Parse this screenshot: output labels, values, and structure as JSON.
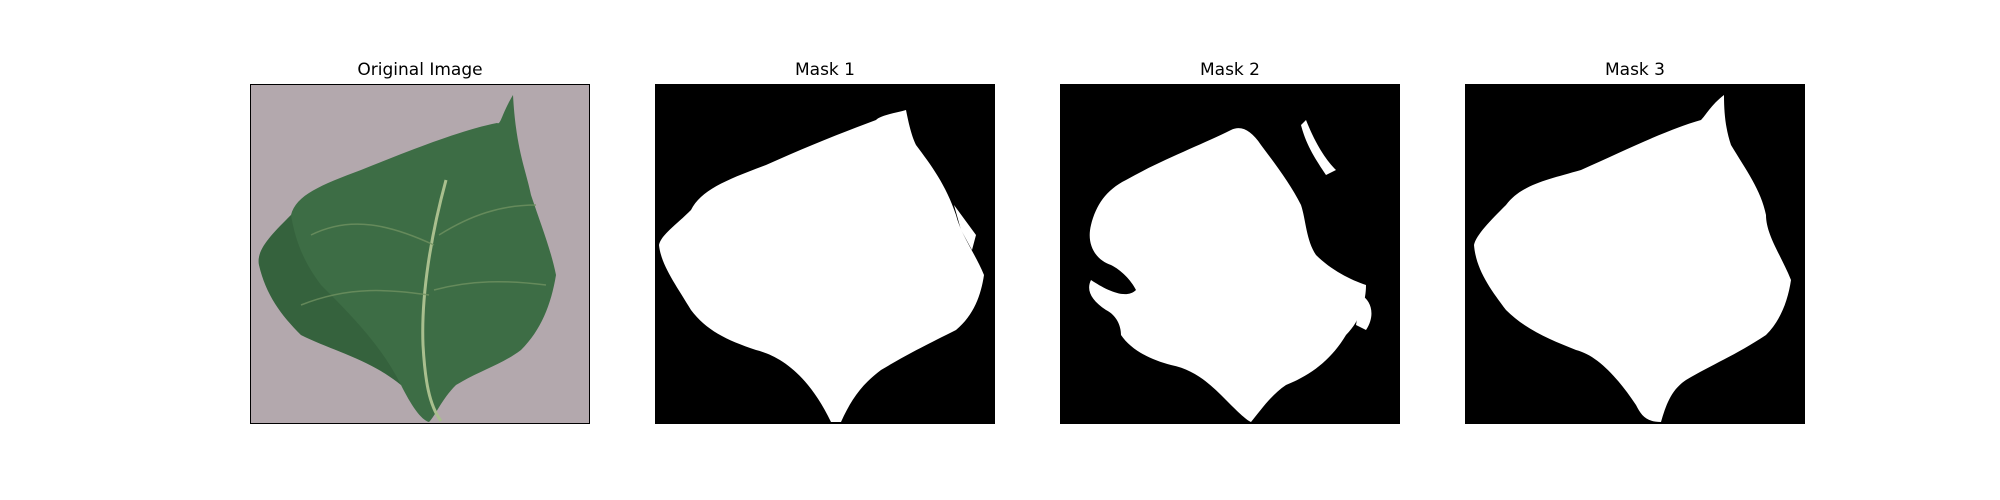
{
  "panels": [
    {
      "title": "Original Image",
      "kind": "photo"
    },
    {
      "title": "Mask 1",
      "kind": "mask"
    },
    {
      "title": "Mask 2",
      "kind": "mask"
    },
    {
      "title": "Mask 3",
      "kind": "mask"
    }
  ],
  "colors": {
    "background_surface": "#b3a8ad",
    "leaf": "#3d6d45",
    "leaf_dark": "#2f5a37",
    "vein": "#a9bf8e",
    "mask_fg": "#ffffff",
    "mask_bg": "#000000"
  }
}
